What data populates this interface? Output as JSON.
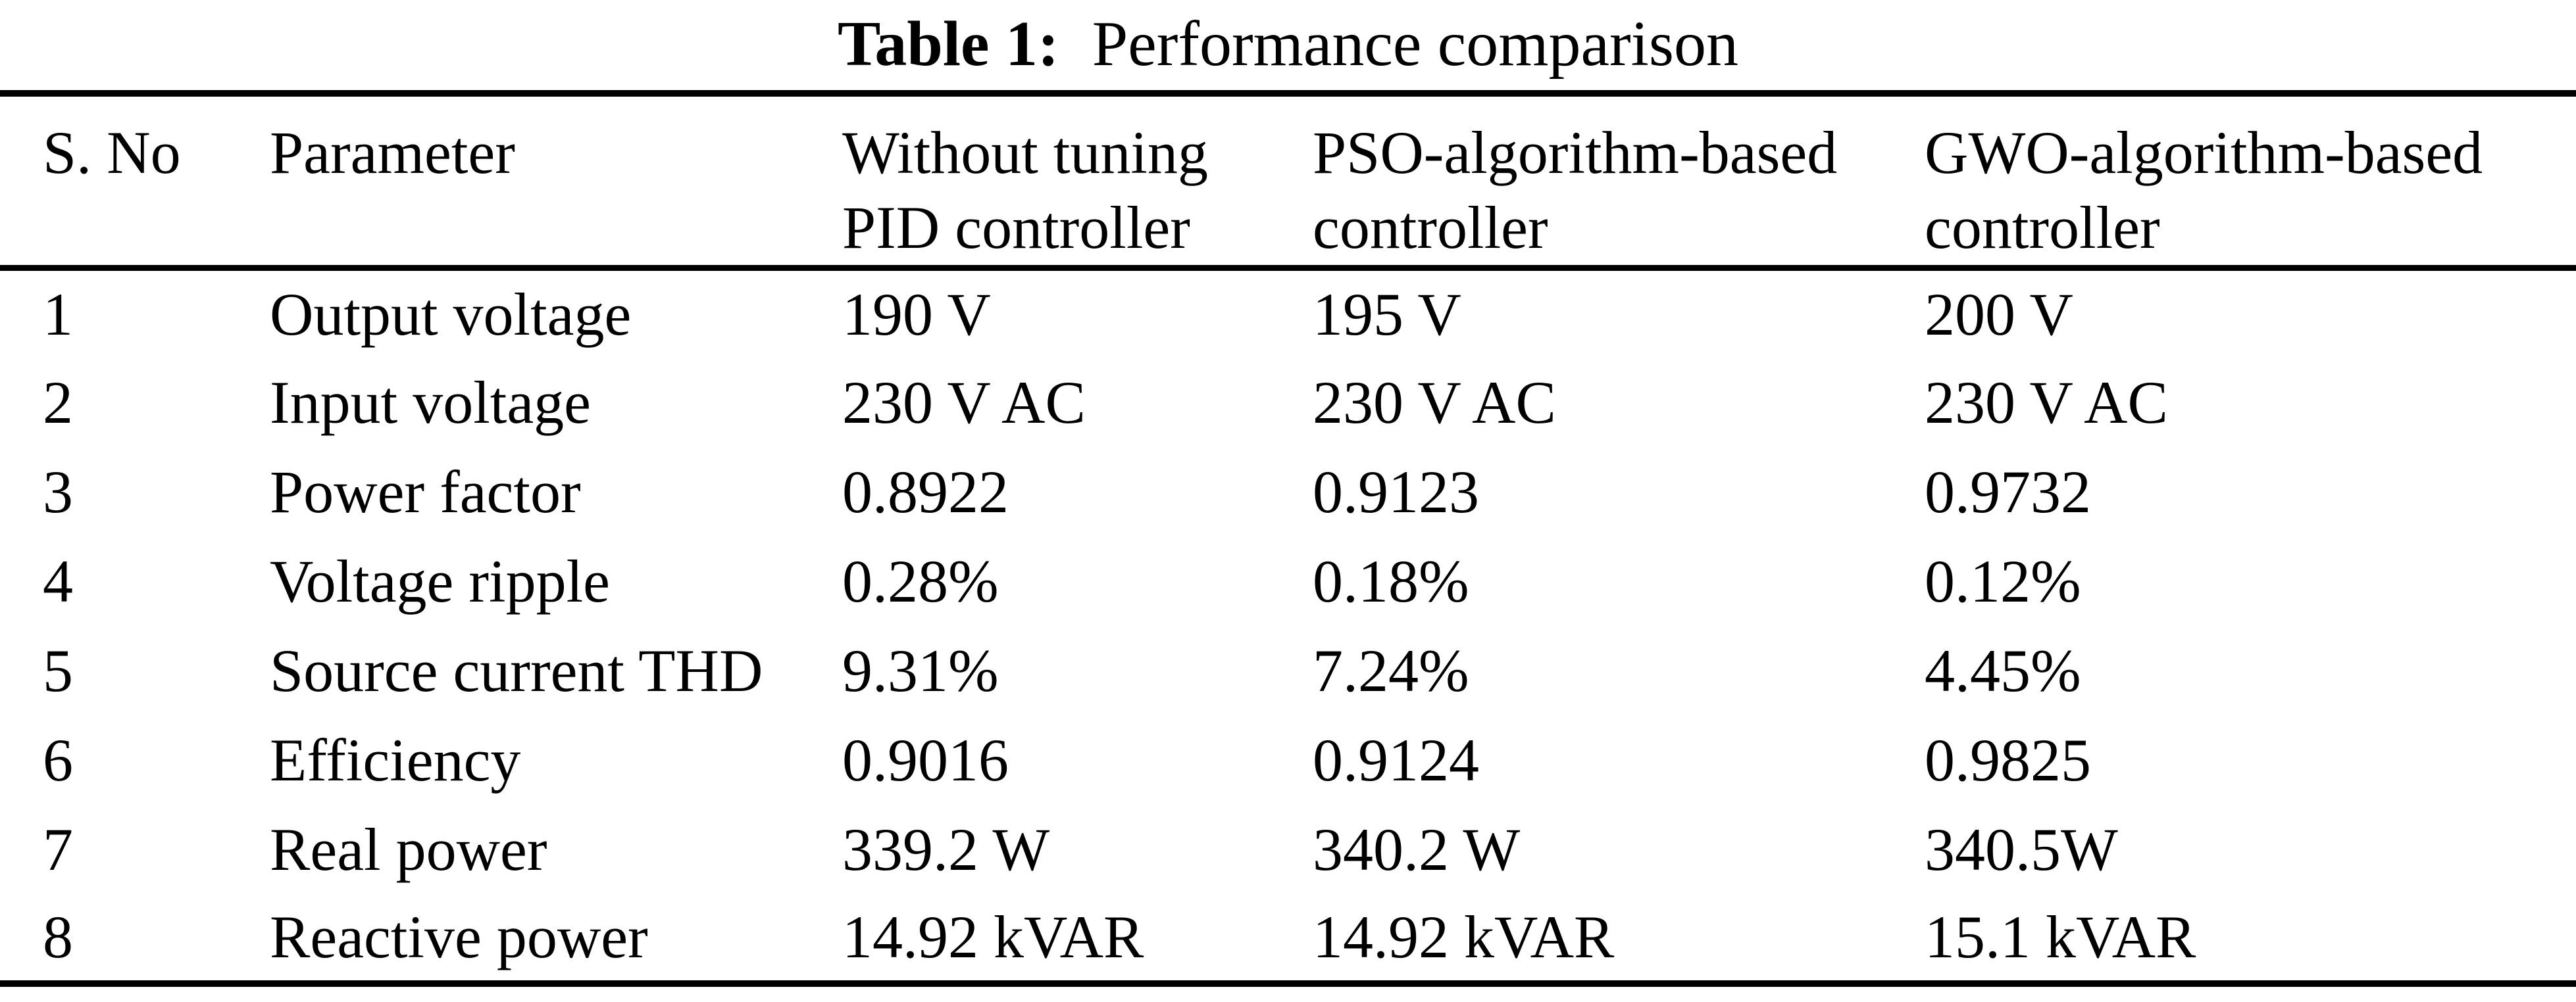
{
  "colors": {
    "background": "#ffffff",
    "text": "#000000",
    "rule": "#000000"
  },
  "caption": {
    "label": "Table 1:",
    "title": "Performance comparison"
  },
  "chart_data": {
    "type": "table",
    "columns": [
      {
        "line1": "S. No",
        "line2": ""
      },
      {
        "line1": "Parameter",
        "line2": ""
      },
      {
        "line1": "Without tuning",
        "line2": "PID controller"
      },
      {
        "line1": "PSO-algorithm-based",
        "line2": "controller"
      },
      {
        "line1": "GWO-algorithm-based",
        "line2": "controller"
      }
    ],
    "rows": [
      [
        "1",
        "Output voltage",
        "190 V",
        "195 V",
        "200 V"
      ],
      [
        "2",
        "Input voltage",
        "230 V AC",
        "230 V AC",
        "230 V AC"
      ],
      [
        "3",
        "Power factor",
        "0.8922",
        "0.9123",
        "0.9732"
      ],
      [
        "4",
        "Voltage ripple",
        "0.28%",
        "0.18%",
        "0.12%"
      ],
      [
        "5",
        "Source current THD",
        "9.31%",
        "7.24%",
        "4.45%"
      ],
      [
        "6",
        "Efficiency",
        "0.9016",
        "0.9124",
        "0.9825"
      ],
      [
        "7",
        "Real power",
        "339.2 W",
        "340.2 W",
        "340.5W"
      ],
      [
        "8",
        "Reactive power",
        "14.92 kVAR",
        "14.92 kVAR",
        "15.1 kVAR"
      ]
    ]
  }
}
